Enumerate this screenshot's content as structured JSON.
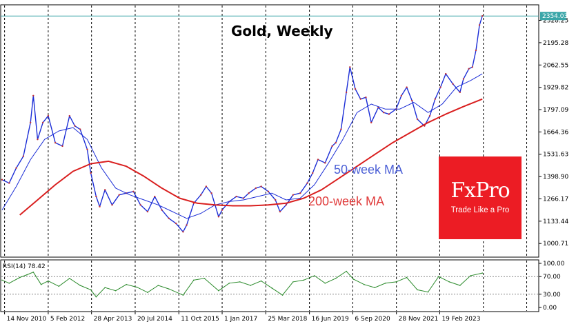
{
  "chart_data": [
    {
      "type": "line",
      "title": "Gold, Weekly",
      "price_label": "2354.03",
      "ylim": [
        940,
        2400
      ],
      "y_ticks": [
        2328.25,
        2195.28,
        2062.55,
        1929.82,
        1797.09,
        1664.36,
        1531.63,
        1398.9,
        1266.17,
        1133.44,
        1000.71
      ],
      "y_tick_labels": [
        "2328.25",
        "2195.28",
        "2062.55",
        "1929.82",
        "1797.09",
        "1664.36",
        "1531.63",
        "1398.90",
        "1266.17",
        "1133.44",
        "1000.71"
      ],
      "x_tick_labels": [
        "14 Nov 2010",
        "5 Feb 2012",
        "28 Apr 2013",
        "20 Jul 2014",
        "11 Oct 2015",
        "1 Jan 2017",
        "25 Mar 2018",
        "16 Jun 2019",
        "6 Sep 2020",
        "28 Nov 2021",
        "19 Feb 2023"
      ],
      "x_tick_years": [
        2010.87,
        2012.1,
        2013.32,
        2014.55,
        2015.78,
        2017.0,
        2018.23,
        2019.46,
        2020.68,
        2021.91,
        2023.13
      ],
      "xlim": [
        2010.8,
        2025.9
      ],
      "series": [
        {
          "name": "Price",
          "color": "#1b2dd6",
          "x": [
            2010.8,
            2011.0,
            2011.2,
            2011.4,
            2011.6,
            2011.68,
            2011.8,
            2011.95,
            2012.1,
            2012.3,
            2012.5,
            2012.7,
            2012.85,
            2013.0,
            2013.2,
            2013.3,
            2013.45,
            2013.55,
            2013.7,
            2013.9,
            2014.1,
            2014.3,
            2014.5,
            2014.7,
            2014.9,
            2015.1,
            2015.3,
            2015.5,
            2015.7,
            2015.9,
            2016.0,
            2016.2,
            2016.4,
            2016.55,
            2016.7,
            2016.9,
            2017.0,
            2017.2,
            2017.4,
            2017.6,
            2017.75,
            2017.95,
            2018.1,
            2018.3,
            2018.5,
            2018.63,
            2018.8,
            2019.0,
            2019.2,
            2019.4,
            2019.55,
            2019.7,
            2019.9,
            2020.1,
            2020.2,
            2020.35,
            2020.5,
            2020.6,
            2020.75,
            2020.9,
            2021.05,
            2021.2,
            2021.4,
            2021.55,
            2021.7,
            2021.9,
            2022.05,
            2022.2,
            2022.35,
            2022.5,
            2022.7,
            2022.85,
            2023.0,
            2023.15,
            2023.3,
            2023.5,
            2023.7,
            2023.8,
            2023.95,
            2024.05,
            2024.15,
            2024.25,
            2024.33
          ],
          "y": [
            1380,
            1360,
            1450,
            1520,
            1720,
            1880,
            1620,
            1720,
            1760,
            1600,
            1580,
            1760,
            1700,
            1680,
            1560,
            1420,
            1280,
            1220,
            1320,
            1230,
            1290,
            1300,
            1310,
            1230,
            1190,
            1280,
            1200,
            1150,
            1120,
            1070,
            1110,
            1240,
            1290,
            1340,
            1300,
            1160,
            1200,
            1250,
            1280,
            1270,
            1300,
            1330,
            1340,
            1310,
            1260,
            1190,
            1230,
            1290,
            1300,
            1360,
            1420,
            1500,
            1480,
            1580,
            1600,
            1680,
            1900,
            2050,
            1920,
            1860,
            1870,
            1720,
            1810,
            1780,
            1770,
            1800,
            1880,
            1930,
            1850,
            1740,
            1700,
            1760,
            1860,
            1930,
            2010,
            1950,
            1900,
            1980,
            2040,
            2050,
            2150,
            2300,
            2354
          ]
        },
        {
          "name": "50-week MA",
          "color": "#1b2dd6",
          "x": [
            2010.8,
            2011.2,
            2011.6,
            2012.0,
            2012.4,
            2012.8,
            2013.2,
            2013.6,
            2014.0,
            2014.4,
            2014.8,
            2015.2,
            2015.6,
            2016.0,
            2016.4,
            2016.8,
            2017.2,
            2017.6,
            2018.0,
            2018.4,
            2018.8,
            2019.2,
            2019.6,
            2020.0,
            2020.4,
            2020.8,
            2021.2,
            2021.6,
            2022.0,
            2022.4,
            2022.8,
            2023.2,
            2023.6,
            2024.0,
            2024.33
          ],
          "y": [
            1200,
            1340,
            1500,
            1620,
            1670,
            1690,
            1620,
            1450,
            1330,
            1290,
            1260,
            1230,
            1190,
            1150,
            1180,
            1230,
            1250,
            1260,
            1280,
            1300,
            1260,
            1270,
            1350,
            1480,
            1620,
            1780,
            1830,
            1800,
            1800,
            1840,
            1780,
            1830,
            1930,
            1970,
            2010
          ]
        },
        {
          "name": "200-week MA",
          "color": "#d91e1e",
          "x": [
            2011.3,
            2011.8,
            2012.3,
            2012.8,
            2013.3,
            2013.8,
            2014.3,
            2014.8,
            2015.3,
            2015.8,
            2016.3,
            2016.8,
            2017.3,
            2017.8,
            2018.3,
            2018.8,
            2019.3,
            2019.8,
            2020.3,
            2020.8,
            2021.3,
            2021.8,
            2022.3,
            2022.8,
            2023.3,
            2023.8,
            2024.33
          ],
          "y": [
            1170,
            1260,
            1350,
            1430,
            1475,
            1490,
            1460,
            1400,
            1330,
            1270,
            1240,
            1230,
            1225,
            1225,
            1230,
            1240,
            1270,
            1320,
            1390,
            1460,
            1530,
            1600,
            1660,
            1720,
            1770,
            1815,
            1860
          ]
        }
      ],
      "annotations": [
        "50-week MA",
        "200-week MA"
      ]
    },
    {
      "type": "line",
      "title": "RSI(14) 78.42",
      "ylim": [
        0,
        100
      ],
      "y_ticks": [
        100,
        70,
        30,
        0
      ],
      "y_tick_labels": [
        "100.00",
        "70.00",
        "30.00",
        "0.00"
      ],
      "levels": [
        70,
        30
      ],
      "series": [
        {
          "name": "RSI(14)",
          "color": "#2a8a2a",
          "x": [
            2010.8,
            2011.0,
            2011.3,
            2011.5,
            2011.68,
            2011.9,
            2012.1,
            2012.4,
            2012.7,
            2013.0,
            2013.3,
            2013.45,
            2013.7,
            2014.0,
            2014.3,
            2014.6,
            2014.9,
            2015.2,
            2015.5,
            2015.9,
            2016.2,
            2016.5,
            2016.9,
            2017.2,
            2017.5,
            2017.8,
            2018.1,
            2018.4,
            2018.7,
            2019.0,
            2019.3,
            2019.6,
            2019.9,
            2020.2,
            2020.5,
            2020.7,
            2021.0,
            2021.3,
            2021.6,
            2021.9,
            2022.2,
            2022.5,
            2022.8,
            2023.1,
            2023.4,
            2023.7,
            2024.0,
            2024.33
          ],
          "y": [
            62,
            55,
            68,
            74,
            80,
            52,
            60,
            48,
            66,
            50,
            40,
            24,
            45,
            38,
            52,
            46,
            34,
            50,
            42,
            28,
            62,
            66,
            38,
            55,
            58,
            50,
            60,
            44,
            28,
            58,
            62,
            72,
            55,
            66,
            82,
            64,
            52,
            45,
            55,
            58,
            68,
            40,
            35,
            70,
            58,
            50,
            72,
            78
          ]
        }
      ]
    }
  ],
  "logo": {
    "brand": "FxPro",
    "tagline": "Trade Like a Pro",
    "color": "#ec1c24"
  }
}
